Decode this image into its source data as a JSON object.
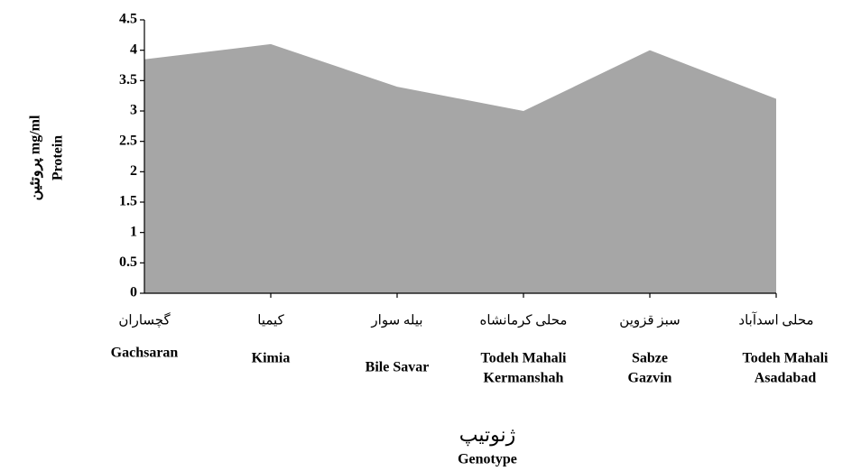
{
  "chart_data": {
    "type": "area",
    "ylabel": [
      "پروتئین  mg/ml",
      "Protein"
    ],
    "xlabel": [
      "ژنوتیپ",
      "Genotype"
    ],
    "categories_fa": [
      "گچساران",
      "کیمیا",
      "بیله سوار",
      "محلی کرمانشاه",
      "سبز قزوین",
      "محلی اسدآباد"
    ],
    "categories": [
      [
        "Gachsaran"
      ],
      [
        "Kimia"
      ],
      [
        "Bile Savar"
      ],
      [
        "Todeh Mahali",
        "Kermanshah"
      ],
      [
        "Sabze",
        "Gazvin"
      ],
      [
        "Todeh Mahali",
        "Asadabad"
      ]
    ],
    "values": [
      3.85,
      4.1,
      3.4,
      3.0,
      4.0,
      3.2
    ],
    "color": "#a6a6a6",
    "ylim": [
      0,
      4.5
    ],
    "yticks": [
      0,
      0.5,
      1,
      1.5,
      2,
      2.5,
      3,
      3.5,
      4,
      4.5
    ],
    "grid": false
  }
}
